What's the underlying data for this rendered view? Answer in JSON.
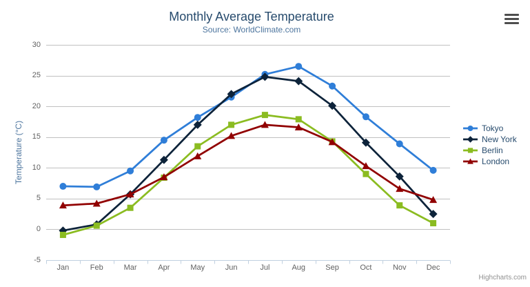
{
  "chart_data": {
    "type": "line",
    "title": "Monthly Average Temperature",
    "subtitle": "Source: WorldClimate.com",
    "xlabel": "",
    "ylabel": "Temperature (°C)",
    "categories": [
      "Jan",
      "Feb",
      "Mar",
      "Apr",
      "May",
      "Jun",
      "Jul",
      "Aug",
      "Sep",
      "Oct",
      "Nov",
      "Dec"
    ],
    "yticks": [
      -5,
      0,
      5,
      10,
      15,
      20,
      25,
      30
    ],
    "ylim": [
      -5,
      30
    ],
    "grid": true,
    "legend_position": "right",
    "series": [
      {
        "name": "Tokyo",
        "marker": "circle",
        "color": "#2f7ed8",
        "values": [
          7.0,
          6.9,
          9.5,
          14.5,
          18.2,
          21.5,
          25.2,
          26.5,
          23.3,
          18.3,
          13.9,
          9.6
        ]
      },
      {
        "name": "New York",
        "marker": "diamond",
        "color": "#0d233a",
        "values": [
          -0.2,
          0.8,
          5.7,
          11.3,
          17.0,
          22.0,
          24.8,
          24.1,
          20.1,
          14.1,
          8.6,
          2.5
        ]
      },
      {
        "name": "Berlin",
        "marker": "square",
        "color": "#8bbc21",
        "values": [
          -0.9,
          0.6,
          3.5,
          8.4,
          13.5,
          17.0,
          18.6,
          17.9,
          14.3,
          9.0,
          3.9,
          1.0
        ]
      },
      {
        "name": "London",
        "marker": "triangle",
        "color": "#910000",
        "values": [
          3.9,
          4.2,
          5.7,
          8.5,
          11.9,
          15.2,
          17.0,
          16.6,
          14.2,
          10.3,
          6.6,
          4.8
        ]
      }
    ]
  },
  "credits": {
    "label": "Highcharts.com"
  },
  "export_menu": {
    "icon": "hamburger-icon"
  },
  "colors": {
    "background": "#ffffff",
    "title": "#274b6d",
    "subtitle": "#4d759e",
    "yaxis_title": "#4d759e",
    "axis_labels": "#606060",
    "gridline": "#c0c0c0",
    "xaxis_line": "#c0d0e0",
    "legend_text": "#274b6d",
    "credits_text": "#909090",
    "export_icon": "#4d4d4d"
  }
}
